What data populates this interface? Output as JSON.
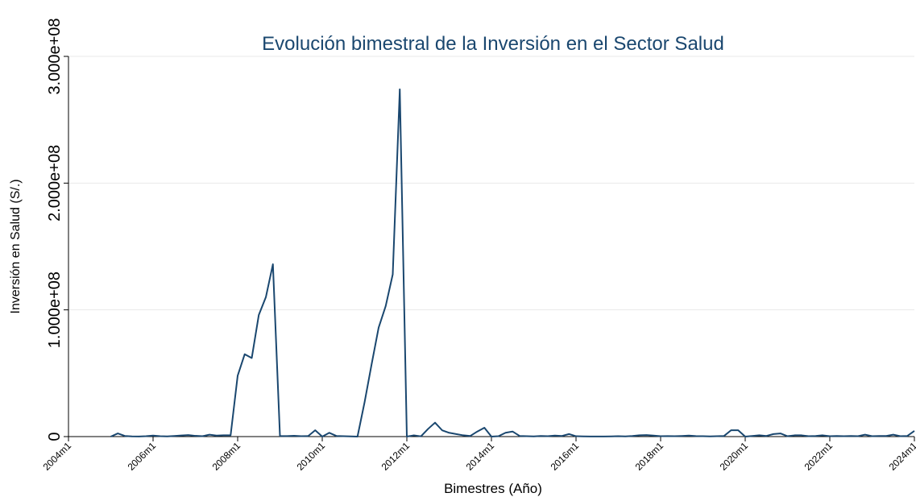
{
  "chart_data": {
    "type": "line",
    "title": "Evolución bimestral de la Inversión en el Sector Salud",
    "x_label": "Bimestres (Año)",
    "y_label": "Inversión en Salud (S/.)",
    "x": [
      "2005m1",
      "2005m3",
      "2005m5",
      "2005m7",
      "2005m9",
      "2005m11",
      "2006m1",
      "2006m3",
      "2006m5",
      "2006m7",
      "2006m9",
      "2006m11",
      "2007m1",
      "2007m3",
      "2007m5",
      "2007m7",
      "2007m9",
      "2007m11",
      "2008m1",
      "2008m3",
      "2008m5",
      "2008m7",
      "2008m9",
      "2008m11",
      "2009m1",
      "2009m3",
      "2009m5",
      "2009m7",
      "2009m9",
      "2009m11",
      "2010m1",
      "2010m3",
      "2010m5",
      "2010m7",
      "2010m9",
      "2010m11",
      "2011m1",
      "2011m3",
      "2011m5",
      "2011m7",
      "2011m9",
      "2011m11",
      "2012m1",
      "2012m3",
      "2012m5",
      "2012m7",
      "2012m9",
      "2012m11",
      "2013m1",
      "2013m3",
      "2013m5",
      "2013m7",
      "2013m9",
      "2013m11",
      "2014m1",
      "2014m3",
      "2014m5",
      "2014m7",
      "2014m9",
      "2014m11",
      "2015m1",
      "2015m3",
      "2015m5",
      "2015m7",
      "2015m9",
      "2015m11",
      "2016m1",
      "2016m3",
      "2016m5",
      "2016m7",
      "2016m9",
      "2016m11",
      "2017m1",
      "2017m3",
      "2017m5",
      "2017m7",
      "2017m9",
      "2017m11",
      "2018m1",
      "2018m3",
      "2018m5",
      "2018m7",
      "2018m9",
      "2018m11",
      "2019m1",
      "2019m3",
      "2019m5",
      "2019m7",
      "2019m9",
      "2019m11",
      "2020m1",
      "2020m3",
      "2020m5",
      "2020m7",
      "2020m9",
      "2020m11",
      "2021m1",
      "2021m3",
      "2021m5",
      "2021m7",
      "2021m9",
      "2021m11",
      "2022m1",
      "2022m3",
      "2022m5",
      "2022m7",
      "2022m9",
      "2022m11",
      "2023m1",
      "2023m3",
      "2023m5",
      "2023m7",
      "2023m9",
      "2023m11",
      "2024m1"
    ],
    "series": [
      {
        "name": "Inversión en Salud (S/.)",
        "color": "#1a476f",
        "values": [
          0,
          2500000,
          500000,
          200000,
          100000,
          300000,
          800000,
          300000,
          200000,
          500000,
          900000,
          1200000,
          600000,
          300000,
          1500000,
          800000,
          1000000,
          1000000,
          48000000,
          65000000,
          62000000,
          96000000,
          110000000,
          136000000,
          500000,
          400000,
          600000,
          300000,
          400000,
          5000000,
          0,
          3000000,
          500000,
          300000,
          200000,
          0,
          27000000,
          57000000,
          86000000,
          103000000,
          128000000,
          274000000,
          0,
          1000000,
          200000,
          6000000,
          11000000,
          5000000,
          3000000,
          2000000,
          1000000,
          500000,
          4000000,
          7000000,
          0,
          300000,
          3000000,
          4000000,
          500000,
          300000,
          200000,
          500000,
          300000,
          800000,
          500000,
          2000000,
          300000,
          200000,
          100000,
          100000,
          100000,
          200000,
          300000,
          200000,
          500000,
          1000000,
          1200000,
          800000,
          300000,
          400000,
          300000,
          500000,
          800000,
          400000,
          300000,
          200000,
          300000,
          500000,
          5000000,
          5000000,
          0,
          500000,
          1000000,
          500000,
          2000000,
          2500000,
          300000,
          1000000,
          1000000,
          300000,
          500000,
          1000000,
          300000,
          500000,
          300000,
          500000,
          300000,
          1500000,
          300000,
          500000,
          500000,
          1500000,
          300000,
          500000,
          4500000
        ]
      }
    ],
    "xlim": [
      "2004m1",
      "2024m1"
    ],
    "xticks": [
      "2004m1",
      "2006m1",
      "2008m1",
      "2010m1",
      "2012m1",
      "2014m1",
      "2016m1",
      "2018m1",
      "2020m1",
      "2022m1",
      "2024m1"
    ],
    "ylim": [
      0,
      300000000
    ],
    "yticks": [
      0,
      {
        "value": 100000000,
        "label": "1.000e+08"
      },
      {
        "value": 200000000,
        "label": "2.000e+08"
      },
      {
        "value": 300000000,
        "label": "3.000e+08"
      }
    ],
    "grid": true
  }
}
